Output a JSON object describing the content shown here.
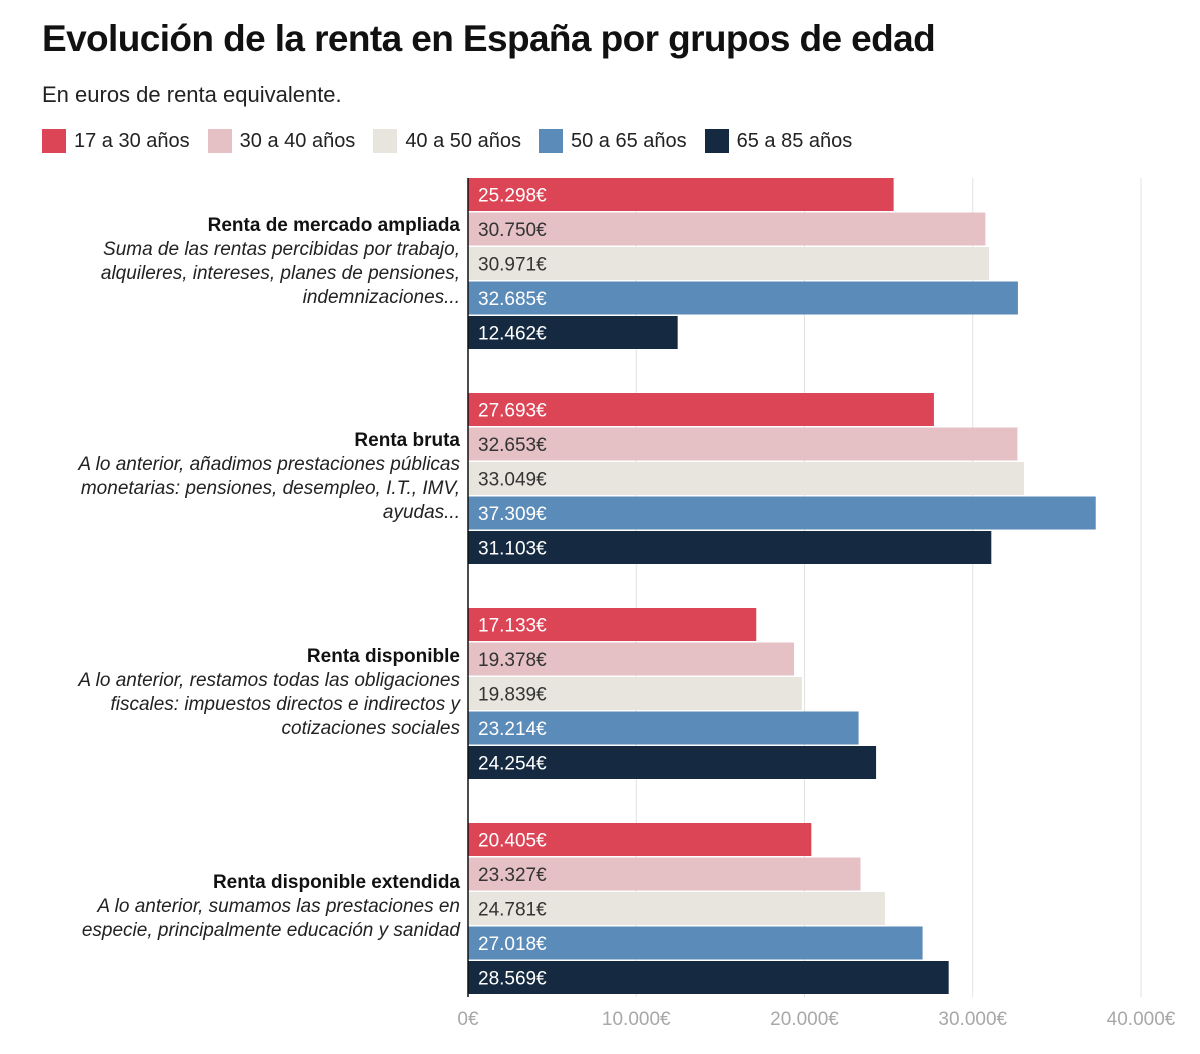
{
  "chart_data": {
    "type": "bar",
    "orientation": "horizontal",
    "title": "Evolución de la renta en España por grupos de edad",
    "subtitle": "En euros de renta equivalente.",
    "series": [
      {
        "name": "17 a 30 años",
        "color": "#dc4556",
        "label_color": "#ffffff",
        "values": [
          25298,
          27693,
          17133,
          20405
        ],
        "labels": [
          "25.298€",
          "27.693€",
          "17.133€",
          "20.405€"
        ]
      },
      {
        "name": "30 a 40 años",
        "color": "#e5c0c5",
        "label_color": "#333333",
        "values": [
          30750,
          32653,
          19378,
          23327
        ],
        "labels": [
          "30.750€",
          "32.653€",
          "19.378€",
          "23.327€"
        ]
      },
      {
        "name": "40 a 50 años",
        "color": "#e8e5de",
        "label_color": "#333333",
        "values": [
          30971,
          33049,
          19839,
          24781
        ],
        "labels": [
          "30.971€",
          "33.049€",
          "19.839€",
          "24.781€"
        ]
      },
      {
        "name": "50 a 65 años",
        "color": "#5b8bb8",
        "label_color": "#ffffff",
        "values": [
          32685,
          37309,
          23214,
          27018
        ],
        "labels": [
          "32.685€",
          "37.309€",
          "23.214€",
          "27.018€"
        ]
      },
      {
        "name": "65 a 85 años",
        "color": "#152a40",
        "label_color": "#ffffff",
        "values": [
          12462,
          31103,
          24254,
          28569
        ],
        "labels": [
          "12.462€",
          "31.103€",
          "24.254€",
          "28.569€"
        ]
      }
    ],
    "categories": [
      {
        "name": "Renta de mercado ampliada",
        "description": [
          "Suma de las rentas percibidas por trabajo,",
          "alquileres, intereses, planes de pensiones,",
          "indemnizaciones..."
        ]
      },
      {
        "name": "Renta bruta",
        "description": [
          "A lo anterior, añadimos prestaciones públicas",
          "monetarias: pensiones, desempleo, I.T., IMV,",
          "ayudas..."
        ]
      },
      {
        "name": "Renta disponible",
        "description": [
          "A lo anterior, restamos todas las obligaciones",
          "fiscales: impuestos directos e indirectos y",
          "cotizaciones sociales"
        ]
      },
      {
        "name": "Renta disponible extendida",
        "description": [
          "A lo anterior, sumamos las prestaciones en",
          "especie, principalmente educación y sanidad"
        ]
      }
    ],
    "xlim": [
      0,
      40000
    ],
    "xticks": [
      0,
      10000,
      20000,
      30000,
      40000
    ],
    "xtick_labels": [
      "0€",
      "10.000€",
      "20.000€",
      "30.000€",
      "40.000€"
    ],
    "grid": true,
    "legend_position": "top"
  }
}
